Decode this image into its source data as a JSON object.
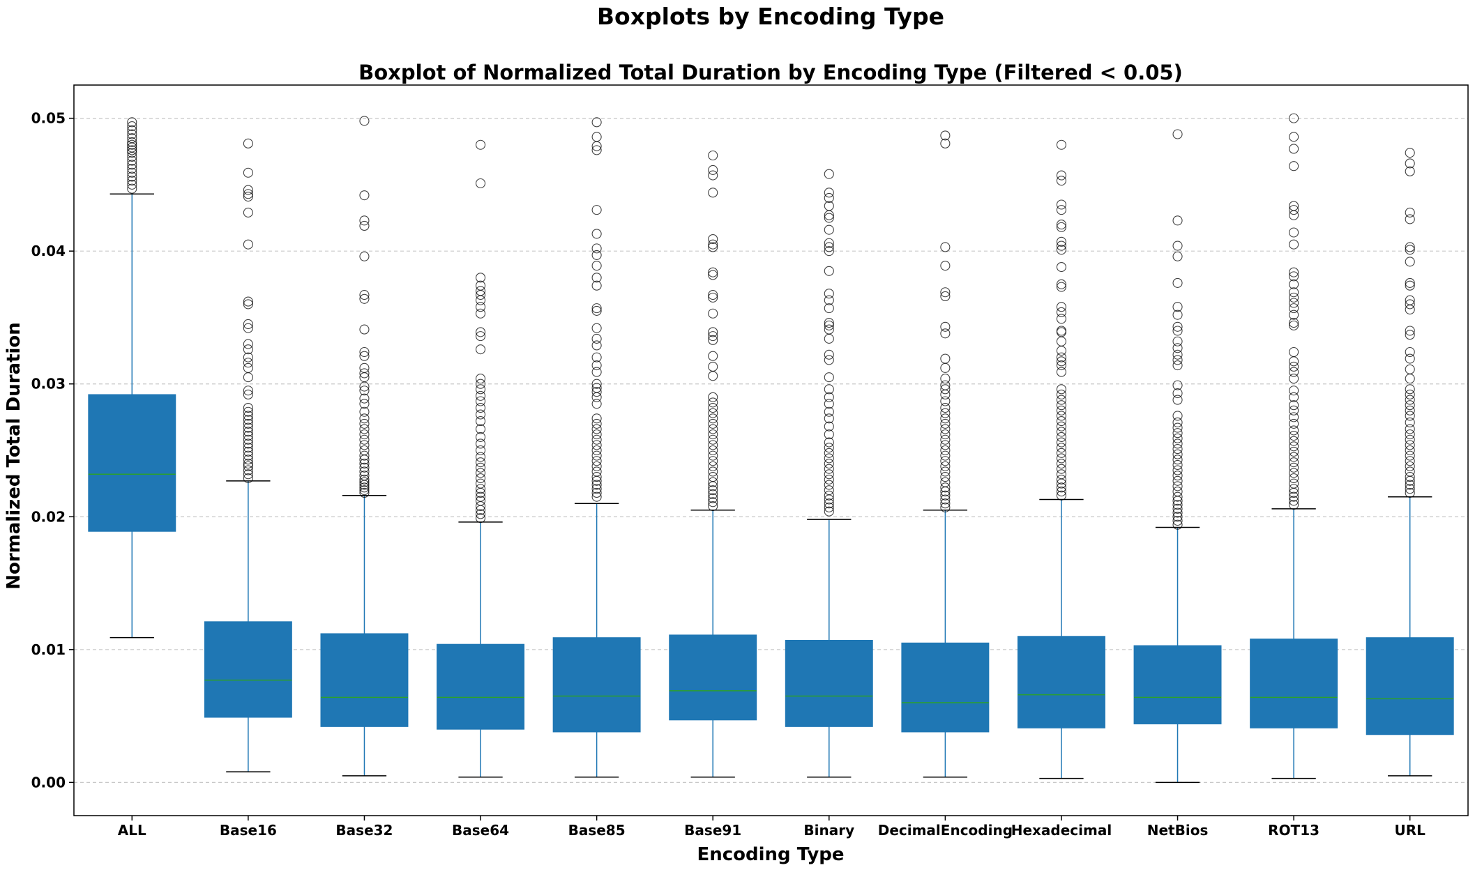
{
  "figure": {
    "suptitle": "Boxplots by Encoding Type"
  },
  "chart_data": {
    "type": "box",
    "title": "Boxplot of Normalized Total Duration by Encoding Type (Filtered < 0.05)",
    "xlabel": "Encoding Type",
    "ylabel": "Normalized Total Duration",
    "ylim": [
      -0.0025,
      0.0525
    ],
    "yticks": [
      0.0,
      0.01,
      0.02,
      0.03,
      0.04,
      0.05
    ],
    "ytick_labels": [
      "0.00",
      "0.01",
      "0.02",
      "0.03",
      "0.04",
      "0.05"
    ],
    "grid": "y, dashed",
    "colors": {
      "box_fill": "#1f77b4",
      "whisker": "#1f77b4",
      "median": "#2ca02c",
      "cap": "#000000",
      "outlier": "#000000",
      "grid": "#c8c8c8"
    },
    "categories": [
      "ALL",
      "Base16",
      "Base32",
      "Base64",
      "Base85",
      "Base91",
      "Binary",
      "DecimalEncoding",
      "Hexadecimal",
      "NetBios",
      "ROT13",
      "URL"
    ],
    "boxes": [
      {
        "category": "ALL",
        "whislo": 0.0109,
        "q1": 0.0189,
        "median": 0.0232,
        "q3": 0.0292,
        "whishi": 0.0443,
        "fliers": [
          0.0447,
          0.045,
          0.0453,
          0.0456,
          0.0459,
          0.0462,
          0.0465,
          0.0468,
          0.0471,
          0.0474,
          0.0476,
          0.0478,
          0.048,
          0.0482,
          0.0485,
          0.0488,
          0.0491,
          0.0494,
          0.0497
        ]
      },
      {
        "category": "Base16",
        "whislo": 0.0008,
        "q1": 0.0049,
        "median": 0.0077,
        "q3": 0.0121,
        "whishi": 0.0227,
        "fliers": [
          0.0229,
          0.0232,
          0.0235,
          0.0238,
          0.024,
          0.0243,
          0.0246,
          0.0249,
          0.0252,
          0.0255,
          0.0258,
          0.0261,
          0.0264,
          0.0267,
          0.027,
          0.0273,
          0.0276,
          0.0279,
          0.0282,
          0.0292,
          0.0295,
          0.0305,
          0.0312,
          0.0316,
          0.032,
          0.0326,
          0.033,
          0.0342,
          0.0345,
          0.036,
          0.0362,
          0.0405,
          0.0429,
          0.0441,
          0.0443,
          0.0446,
          0.0459,
          0.0481
        ]
      },
      {
        "category": "Base32",
        "whislo": 0.0005,
        "q1": 0.0042,
        "median": 0.0064,
        "q3": 0.0112,
        "whishi": 0.0216,
        "fliers": [
          0.0218,
          0.022,
          0.0222,
          0.0224,
          0.0226,
          0.0228,
          0.0231,
          0.0234,
          0.0237,
          0.024,
          0.0243,
          0.0246,
          0.025,
          0.0254,
          0.0258,
          0.0262,
          0.0266,
          0.027,
          0.0274,
          0.0279,
          0.0285,
          0.0289,
          0.0295,
          0.0298,
          0.0305,
          0.0308,
          0.0312,
          0.0321,
          0.0324,
          0.0341,
          0.0364,
          0.0367,
          0.0396,
          0.0419,
          0.0423,
          0.0442,
          0.0498
        ]
      },
      {
        "category": "Base64",
        "whislo": 0.0004,
        "q1": 0.004,
        "median": 0.0064,
        "q3": 0.0104,
        "whishi": 0.0196,
        "fliers": [
          0.0199,
          0.0202,
          0.0205,
          0.0208,
          0.0212,
          0.0215,
          0.0218,
          0.0221,
          0.0225,
          0.0229,
          0.0233,
          0.0237,
          0.0241,
          0.0245,
          0.025,
          0.0255,
          0.026,
          0.0266,
          0.0272,
          0.0277,
          0.0282,
          0.0287,
          0.0291,
          0.0296,
          0.03,
          0.0304,
          0.0326,
          0.0336,
          0.0339,
          0.0353,
          0.0358,
          0.0363,
          0.0367,
          0.037,
          0.0374,
          0.038,
          0.0451,
          0.048
        ]
      },
      {
        "category": "Base85",
        "whislo": 0.0004,
        "q1": 0.0038,
        "median": 0.0065,
        "q3": 0.0109,
        "whishi": 0.021,
        "fliers": [
          0.0215,
          0.0218,
          0.0221,
          0.0224,
          0.0227,
          0.023,
          0.0234,
          0.0238,
          0.0242,
          0.0246,
          0.025,
          0.0254,
          0.0258,
          0.0262,
          0.0266,
          0.027,
          0.0274,
          0.0285,
          0.029,
          0.0294,
          0.0297,
          0.03,
          0.0309,
          0.0314,
          0.032,
          0.0329,
          0.0334,
          0.0342,
          0.0355,
          0.0357,
          0.0374,
          0.038,
          0.0389,
          0.0397,
          0.0402,
          0.0413,
          0.0431,
          0.0476,
          0.0479,
          0.0486,
          0.0497
        ]
      },
      {
        "category": "Base91",
        "whislo": 0.0004,
        "q1": 0.0047,
        "median": 0.0069,
        "q3": 0.0111,
        "whishi": 0.0205,
        "fliers": [
          0.0208,
          0.0211,
          0.0214,
          0.0217,
          0.022,
          0.0223,
          0.0226,
          0.023,
          0.0234,
          0.0238,
          0.0242,
          0.0246,
          0.025,
          0.0254,
          0.0258,
          0.0262,
          0.0266,
          0.027,
          0.0274,
          0.0278,
          0.0282,
          0.0286,
          0.029,
          0.0306,
          0.0313,
          0.0321,
          0.0333,
          0.0336,
          0.0339,
          0.0353,
          0.0365,
          0.0367,
          0.0382,
          0.0384,
          0.0403,
          0.0405,
          0.0409,
          0.0444,
          0.0457,
          0.0461,
          0.0472
        ]
      },
      {
        "category": "Binary",
        "whislo": 0.0004,
        "q1": 0.0042,
        "median": 0.0065,
        "q3": 0.0107,
        "whishi": 0.0198,
        "fliers": [
          0.0204,
          0.0207,
          0.021,
          0.0213,
          0.0216,
          0.022,
          0.0224,
          0.0228,
          0.0232,
          0.0236,
          0.024,
          0.0244,
          0.0248,
          0.0252,
          0.0256,
          0.0262,
          0.0268,
          0.0274,
          0.0279,
          0.0285,
          0.029,
          0.0296,
          0.0305,
          0.0318,
          0.0322,
          0.0334,
          0.0341,
          0.0344,
          0.0346,
          0.0357,
          0.0363,
          0.0368,
          0.0385,
          0.04,
          0.0403,
          0.0406,
          0.0416,
          0.0425,
          0.0427,
          0.0434,
          0.044,
          0.0444,
          0.0458
        ]
      },
      {
        "category": "DecimalEncoding",
        "whislo": 0.0004,
        "q1": 0.0038,
        "median": 0.006,
        "q3": 0.0105,
        "whishi": 0.0205,
        "fliers": [
          0.0207,
          0.021,
          0.0213,
          0.0216,
          0.0219,
          0.0222,
          0.0226,
          0.023,
          0.0234,
          0.0238,
          0.0242,
          0.0246,
          0.025,
          0.0254,
          0.0258,
          0.0262,
          0.0266,
          0.027,
          0.0274,
          0.0278,
          0.0282,
          0.0287,
          0.0292,
          0.0296,
          0.0299,
          0.0304,
          0.0312,
          0.0319,
          0.0338,
          0.0343,
          0.0366,
          0.0369,
          0.0389,
          0.0403,
          0.0481,
          0.0487
        ]
      },
      {
        "category": "Hexadecimal",
        "whislo": 0.0003,
        "q1": 0.0041,
        "median": 0.0066,
        "q3": 0.011,
        "whishi": 0.0213,
        "fliers": [
          0.0216,
          0.0219,
          0.0222,
          0.0225,
          0.0228,
          0.0232,
          0.0236,
          0.024,
          0.0244,
          0.0248,
          0.0252,
          0.0256,
          0.026,
          0.0264,
          0.0268,
          0.0272,
          0.0276,
          0.028,
          0.0284,
          0.0288,
          0.0292,
          0.0296,
          0.0309,
          0.0314,
          0.0317,
          0.032,
          0.0325,
          0.0332,
          0.0339,
          0.034,
          0.0349,
          0.0354,
          0.0358,
          0.0373,
          0.0375,
          0.0388,
          0.0401,
          0.0404,
          0.0407,
          0.0418,
          0.042,
          0.0431,
          0.0435,
          0.0453,
          0.0457,
          0.048
        ]
      },
      {
        "category": "NetBios",
        "whislo": 0.0,
        "q1": 0.0044,
        "median": 0.0064,
        "q3": 0.0103,
        "whishi": 0.0192,
        "fliers": [
          0.0194,
          0.0197,
          0.02,
          0.0203,
          0.0206,
          0.0209,
          0.0212,
          0.0215,
          0.0219,
          0.0223,
          0.0227,
          0.0231,
          0.0235,
          0.0239,
          0.0243,
          0.0247,
          0.0251,
          0.0255,
          0.0259,
          0.0263,
          0.0267,
          0.0271,
          0.0276,
          0.0288,
          0.0293,
          0.0299,
          0.0314,
          0.0318,
          0.0322,
          0.0327,
          0.0332,
          0.034,
          0.0343,
          0.0352,
          0.0358,
          0.0376,
          0.0396,
          0.0404,
          0.0423,
          0.0488
        ]
      },
      {
        "category": "ROT13",
        "whislo": 0.0003,
        "q1": 0.0041,
        "median": 0.0064,
        "q3": 0.0108,
        "whishi": 0.0206,
        "fliers": [
          0.0209,
          0.0212,
          0.0215,
          0.0218,
          0.0221,
          0.0225,
          0.0229,
          0.0233,
          0.0237,
          0.0241,
          0.0245,
          0.0249,
          0.0253,
          0.0257,
          0.0261,
          0.0265,
          0.027,
          0.0275,
          0.028,
          0.0284,
          0.029,
          0.0295,
          0.0304,
          0.0309,
          0.0313,
          0.0317,
          0.0324,
          0.0344,
          0.0346,
          0.0352,
          0.0357,
          0.0361,
          0.0365,
          0.0369,
          0.0375,
          0.0381,
          0.0384,
          0.0405,
          0.0414,
          0.0427,
          0.0431,
          0.0434,
          0.0464,
          0.0477,
          0.0486,
          0.05
        ]
      },
      {
        "category": "URL",
        "whislo": 0.0005,
        "q1": 0.0036,
        "median": 0.0063,
        "q3": 0.0109,
        "whishi": 0.0215,
        "fliers": [
          0.0218,
          0.0221,
          0.0224,
          0.0227,
          0.023,
          0.0234,
          0.0238,
          0.0242,
          0.0246,
          0.025,
          0.0254,
          0.0258,
          0.0262,
          0.0266,
          0.0271,
          0.0276,
          0.028,
          0.0284,
          0.0288,
          0.0292,
          0.0296,
          0.0304,
          0.0311,
          0.0319,
          0.0324,
          0.0337,
          0.034,
          0.0356,
          0.036,
          0.0363,
          0.0374,
          0.0376,
          0.0392,
          0.0401,
          0.0403,
          0.0424,
          0.0429,
          0.046,
          0.0466,
          0.0474
        ]
      }
    ]
  }
}
